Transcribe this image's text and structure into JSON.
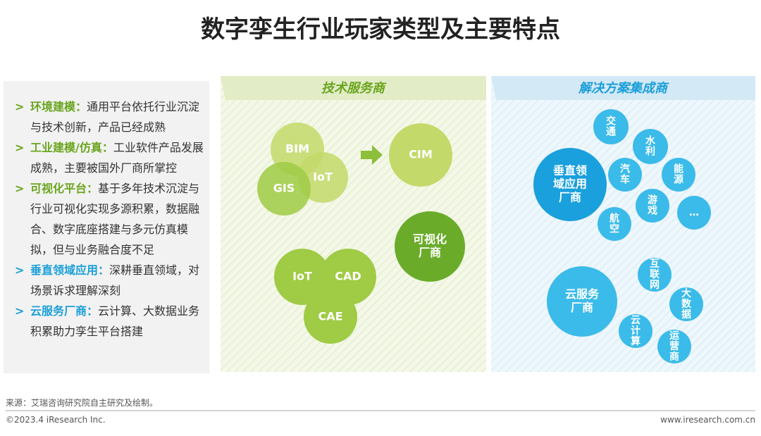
{
  "header": {
    "title": "数字孪生行业玩家类型及主要特点"
  },
  "features": [
    {
      "label": "环境建模：",
      "text": "通用平台依托行业沉淀与技术创新，产品已经成熟"
    },
    {
      "label": "工业建模/仿真：",
      "text": "工业软件产品发展成熟，主要被国外厂商所掌控"
    },
    {
      "label": "可视化平台：",
      "text": "基于多年技术沉淀与行业可视化实现多源积累，数据融合、数字底座搭建与多元仿真模拟，但与业务融合度不足"
    },
    {
      "label": "垂直领域应用：",
      "text": "深耕垂直领域，对场景诉求理解深刻"
    },
    {
      "label": "云服务厂商：",
      "text": "云计算、大数据业务积累助力孪生平台搭建"
    }
  ],
  "panels": [
    {
      "title": "技术服务商",
      "nodes": [
        {
          "label": [
            "BIM"
          ]
        },
        {
          "label": [
            "IoT"
          ]
        },
        {
          "label": [
            "GIS"
          ]
        },
        {
          "label": [
            "CIM"
          ]
        },
        {
          "label": [
            "可视化",
            "厂商"
          ]
        },
        {
          "label": [
            "IoT"
          ]
        },
        {
          "label": [
            "CAD"
          ]
        },
        {
          "label": [
            "CAE"
          ]
        }
      ]
    },
    {
      "title": "解决方案集成商",
      "nodes": [
        {
          "label": [
            "垂直领",
            "域应用",
            "厂商"
          ]
        },
        {
          "label": [
            "交",
            "通"
          ]
        },
        {
          "label": [
            "水",
            "利"
          ]
        },
        {
          "label": [
            "汽",
            "车"
          ]
        },
        {
          "label": [
            "能",
            "源"
          ]
        },
        {
          "label": [
            "游",
            "戏"
          ]
        },
        {
          "label": [
            "航",
            "空"
          ]
        },
        {
          "label": [
            "…"
          ]
        },
        {
          "label": [
            "云服务",
            "厂商"
          ]
        },
        {
          "label": [
            "互",
            "联",
            "网"
          ]
        },
        {
          "label": [
            "大",
            "数",
            "据"
          ]
        },
        {
          "label": [
            "云",
            "计",
            "算"
          ]
        },
        {
          "label": [
            "运",
            "营",
            "商"
          ]
        }
      ]
    }
  ],
  "footer": {
    "source": "来源：艾瑞咨询研究院自主研究及绘制。",
    "copyright": "©2023.4 iResearch Inc.",
    "website": "www.iresearch.com.cn"
  }
}
